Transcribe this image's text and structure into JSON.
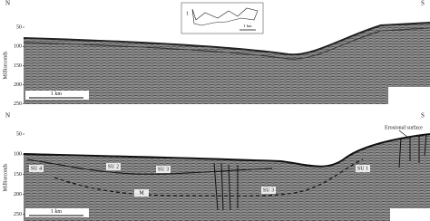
{
  "panels": [
    {
      "north": "N",
      "south": "S",
      "y_axis_label": "Milliseconds",
      "y_ticks": [
        50,
        100,
        150,
        200,
        250
      ],
      "scale_bar": "1 km",
      "inset": {
        "marker": "1",
        "scale_bar": "1 km"
      }
    },
    {
      "north": "N",
      "south": "S",
      "y_axis_label": "Milliseconds",
      "y_ticks": [
        50,
        100,
        150,
        200,
        250
      ],
      "scale_bar": "1 km",
      "annotations": [
        "Erosional surface",
        "SU 4",
        "SU 2",
        "SU 3",
        "SU 1",
        "SU 3",
        "M"
      ]
    }
  ]
}
